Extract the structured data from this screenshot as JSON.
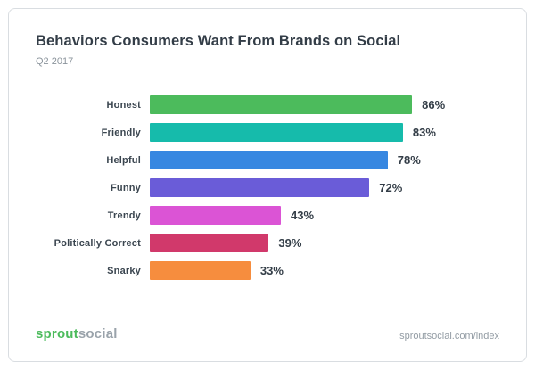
{
  "card": {
    "title": "Behaviors Consumers Want From Brands on Social",
    "subtitle": "Q2 2017",
    "footer": {
      "logo_sprout": "sprout",
      "logo_social": "social",
      "link": "sproutsocial.com/index"
    }
  },
  "chart_data": {
    "type": "bar",
    "orientation": "horizontal",
    "title": "Behaviors Consumers Want From Brands on Social",
    "subtitle": "Q2 2017",
    "categories": [
      "Honest",
      "Friendly",
      "Helpful",
      "Funny",
      "Trendy",
      "Politically Correct",
      "Snarky"
    ],
    "values": [
      86,
      83,
      78,
      72,
      43,
      39,
      33
    ],
    "value_suffix": "%",
    "colors": [
      "#4cbb5c",
      "#16bbab",
      "#3787e1",
      "#6a5cd8",
      "#db54d5",
      "#d1396b",
      "#f68d3e"
    ],
    "xlim": [
      0,
      100
    ],
    "grid": false,
    "legend": false,
    "value_labels": "end-of-bar"
  }
}
